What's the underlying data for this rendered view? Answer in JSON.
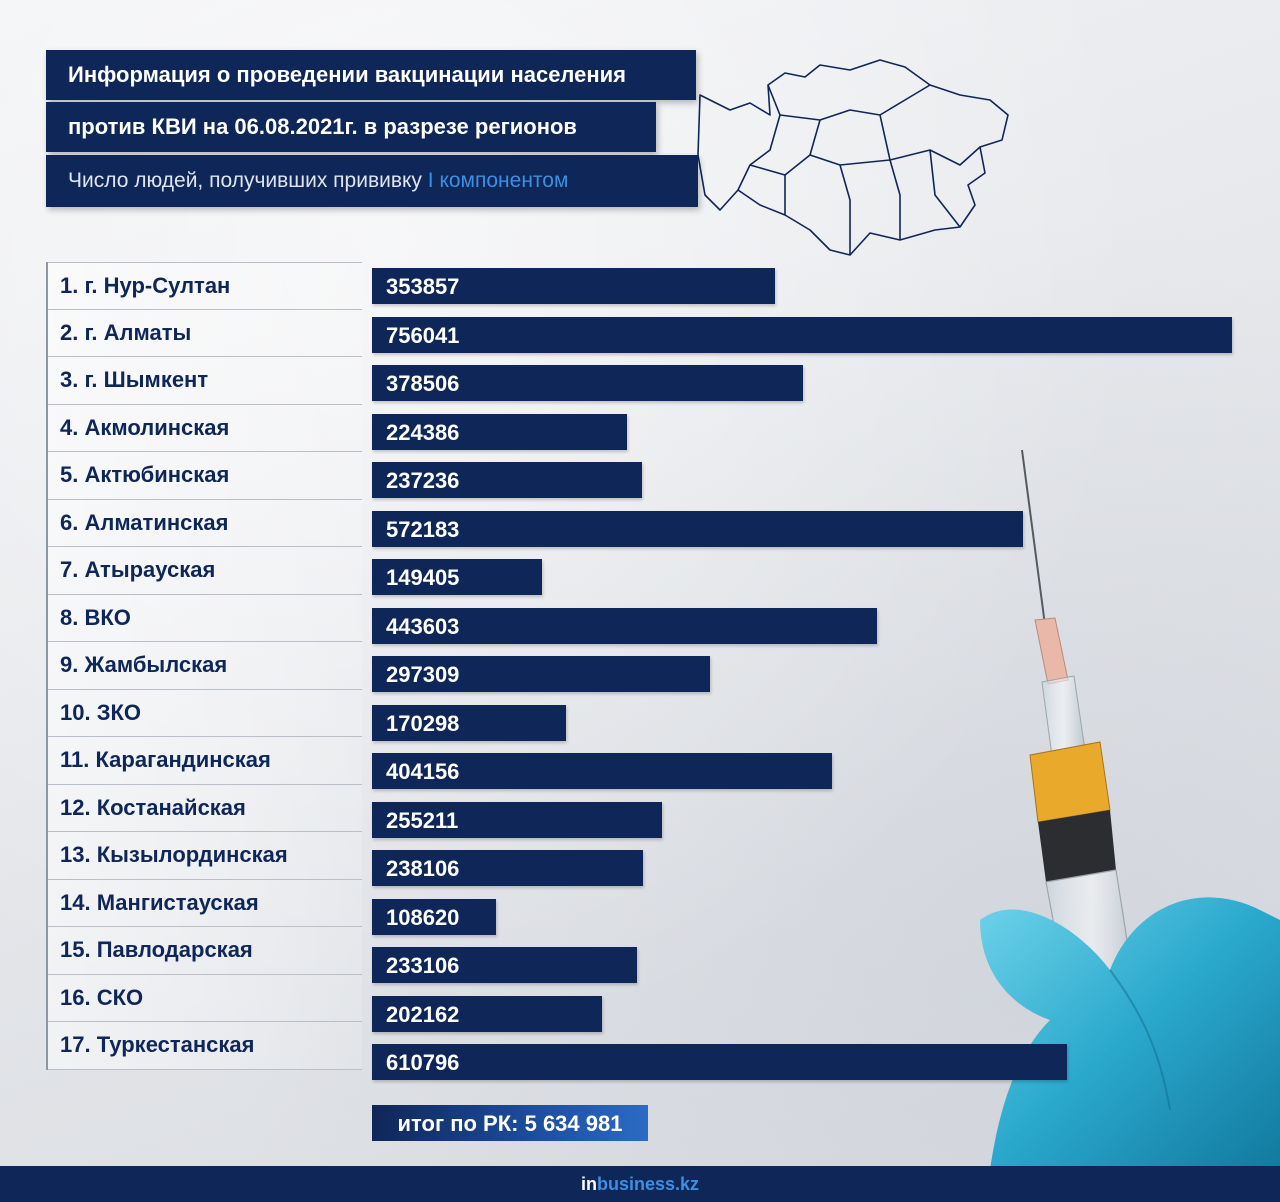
{
  "header": {
    "title_line1": "Информация о проведении вакцинации населения",
    "title_line2": "против КВИ на 06.08.2021г. в разрезе регионов",
    "subtitle_main": "Число людей, получивших прививку",
    "subtitle_accent": "I компонентом"
  },
  "chart_data": {
    "type": "bar",
    "orientation": "horizontal",
    "title": "Информация о проведении вакцинации населения против КВИ на 06.08.2021г. в разрезе регионов",
    "subtitle": "Число людей, получивших прививку I компонентом",
    "categories": [
      "1. г. Нур-Султан",
      "2. г. Алматы",
      "3. г. Шымкент",
      "4. Акмолинская",
      "5. Актюбинская",
      "6. Алматинская",
      "7. Атырауская",
      "8. ВКО",
      "9. Жамбылская",
      "10. ЗКО",
      "11. Карагандинская",
      "12. Костанайская",
      "13. Кызылординская",
      "14. Мангистауская",
      "15. Павлодарская",
      "16. СКО",
      "17. Туркестанская"
    ],
    "values": [
      353857,
      756041,
      378506,
      224386,
      237236,
      572183,
      149405,
      443603,
      297309,
      170298,
      404156,
      255211,
      238106,
      108620,
      233106,
      202162,
      610796
    ],
    "xlim": [
      0,
      756041
    ],
    "grid": false,
    "legend": "none",
    "bar_color": "#0f2658",
    "total_label": "итог по РК: 5 634 981"
  },
  "footer": {
    "brand_prefix": "in",
    "brand_main": "business.kz"
  },
  "colors": {
    "navy": "#0f2658",
    "accent": "#3d8fe0"
  }
}
